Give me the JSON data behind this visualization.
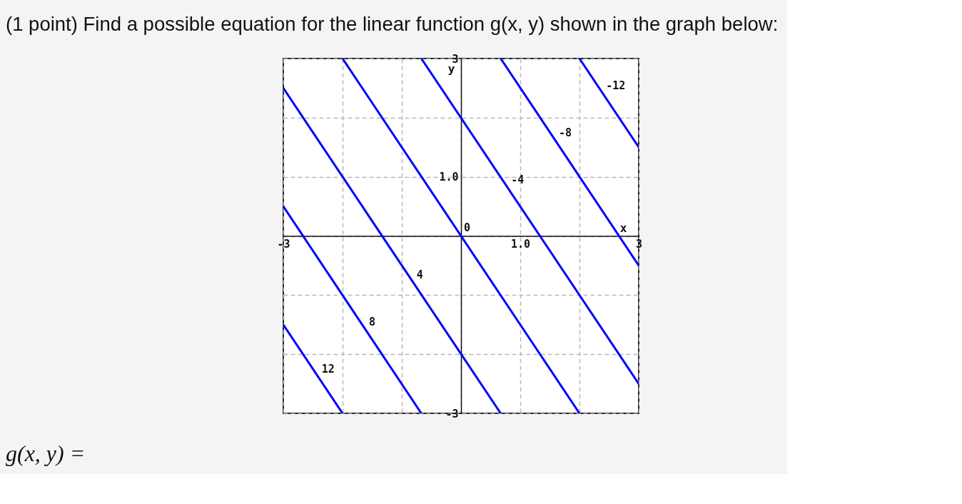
{
  "chart_data": {
    "type": "line",
    "title": "(1 point) Find a possible equation for the linear function g(x, y) shown in the graph below:",
    "xlabel": "x",
    "ylabel": "y",
    "xlim": [
      -3,
      3
    ],
    "ylim": [
      -3,
      3
    ],
    "xticks": [
      -3,
      {
        "value": -2,
        "label": null
      },
      {
        "value": -1,
        "label": null
      },
      {
        "value": 0,
        "label": null
      },
      {
        "value": 1,
        "label": "1.0"
      },
      {
        "value": 2,
        "label": null
      },
      3
    ],
    "yticks": [
      -3,
      {
        "value": -2,
        "label": null
      },
      {
        "value": -1,
        "label": null
      },
      {
        "value": 0,
        "label": null
      },
      {
        "value": 1,
        "label": "1.0"
      },
      {
        "value": 2,
        "label": null
      },
      3
    ],
    "grid": true,
    "annotations": [
      "g(x, y) ="
    ],
    "series": [
      {
        "name": "12",
        "color": "#0000ff",
        "x": [
          -3,
          -2
        ],
        "values": [
          -1.5,
          -3
        ]
      },
      {
        "name": "8",
        "color": "#0000ff",
        "x": [
          -3,
          -0.67
        ],
        "values": [
          0.5,
          -3
        ]
      },
      {
        "name": "4",
        "color": "#0000ff",
        "x": [
          -3,
          0.67
        ],
        "values": [
          2.5,
          -3
        ]
      },
      {
        "name": "0",
        "color": "#0000ff",
        "x": [
          -2,
          2
        ],
        "values": [
          3,
          -3
        ]
      },
      {
        "name": "-4",
        "color": "#0000ff",
        "x": [
          -0.67,
          3
        ],
        "values": [
          3,
          -2.5
        ]
      },
      {
        "name": "-8",
        "color": "#0000ff",
        "x": [
          0.67,
          3
        ],
        "values": [
          3,
          -0.5
        ]
      },
      {
        "name": "-12",
        "color": "#0000ff",
        "x": [
          2,
          3
        ],
        "values": [
          3,
          1.5
        ]
      }
    ]
  }
}
